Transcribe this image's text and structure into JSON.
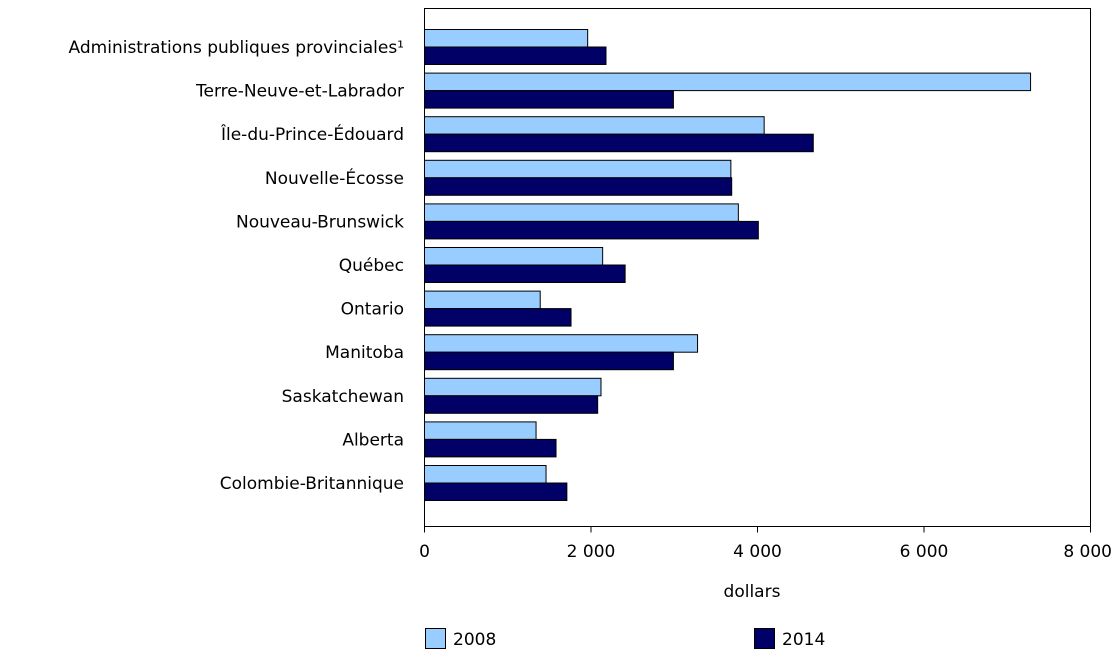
{
  "chart_data": {
    "type": "bar",
    "orientation": "horizontal",
    "categories": [
      "Administrations publiques provinciales¹",
      "Terre-Neuve-et-Labrador",
      "Île-du-Prince-Édouard",
      "Nouvelle-Écosse",
      "Nouveau-Brunswick",
      "Québec",
      "Ontario",
      "Manitoba",
      "Saskatchewan",
      "Alberta",
      "Colombie-Britannique"
    ],
    "series": [
      {
        "name": "2008",
        "color": "#99ccff",
        "values": [
          1960,
          7280,
          4080,
          3680,
          3770,
          2140,
          1390,
          3280,
          2120,
          1340,
          1460
        ]
      },
      {
        "name": "2014",
        "color": "#000066",
        "values": [
          2180,
          2990,
          4670,
          3690,
          4010,
          2410,
          1760,
          2990,
          2080,
          1580,
          1710
        ]
      }
    ],
    "xlabel": "dollars",
    "ylabel": "",
    "xlim": [
      0,
      8000
    ],
    "xticks": [
      0,
      2000,
      4000,
      6000,
      8000
    ],
    "xtick_labels": [
      "0",
      "2 000",
      "4 000",
      "6 000",
      "8 000"
    ],
    "grid": false,
    "legend_position": "bottom"
  }
}
